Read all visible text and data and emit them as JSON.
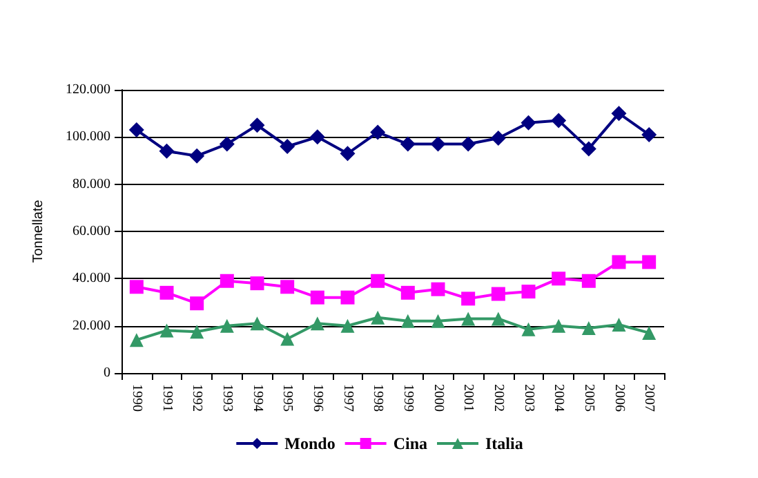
{
  "chart_data": {
    "type": "line",
    "ylabel": "Tonnellate",
    "categories": [
      "1990",
      "1991",
      "1992",
      "1993",
      "1994",
      "1995",
      "1996",
      "1997",
      "1998",
      "1999",
      "2000",
      "2001",
      "2002",
      "2003",
      "2004",
      "2005",
      "2006",
      "2007"
    ],
    "series": [
      {
        "name": "Mondo",
        "color": "#000080",
        "marker": "diamond",
        "values": [
          103000,
          94000,
          92000,
          97000,
          105000,
          96000,
          100000,
          93000,
          102000,
          97000,
          97000,
          97000,
          99500,
          106000,
          107000,
          95000,
          110000,
          101000
        ]
      },
      {
        "name": "Cina",
        "color": "#ff00ff",
        "marker": "square",
        "values": [
          36500,
          34000,
          29500,
          39000,
          38000,
          36500,
          32000,
          32000,
          39000,
          34000,
          35500,
          31500,
          33500,
          34500,
          40000,
          39000,
          47000,
          47000
        ]
      },
      {
        "name": "Italia",
        "color": "#339966",
        "marker": "triangle",
        "values": [
          14000,
          18000,
          17500,
          20000,
          21000,
          14500,
          21000,
          20000,
          23500,
          22000,
          22000,
          23000,
          23000,
          18500,
          20000,
          19000,
          20500,
          17000
        ]
      }
    ],
    "ylim": [
      0,
      120000
    ],
    "yticks": [
      0,
      {
        "value": 20000,
        "label": "20.000"
      },
      {
        "value": 40000,
        "label": "40.000"
      },
      {
        "value": 60000,
        "label": "60.000"
      },
      {
        "value": 80000,
        "label": "80.000"
      },
      {
        "value": 100000,
        "label": "100.000"
      },
      {
        "value": 120000,
        "label": "120.000"
      }
    ],
    "grid": "y",
    "legend": "bottom"
  }
}
